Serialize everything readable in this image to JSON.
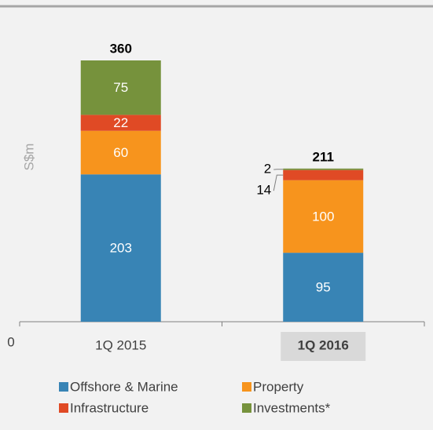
{
  "chart_data": {
    "type": "stacked_bar",
    "y_label": "S$m",
    "categories": [
      "1Q 2015",
      "1Q 2016"
    ],
    "highlight_category": 1,
    "series": [
      {
        "name": "Offshore & Marine",
        "color": "#3884b5",
        "values": [
          203,
          95
        ]
      },
      {
        "name": "Property",
        "color": "#f7941d",
        "values": [
          60,
          100
        ]
      },
      {
        "name": "Infrastructure",
        "color": "#e04a25",
        "values": [
          22,
          14
        ]
      },
      {
        "name": "Investments*",
        "color": "#76923c",
        "values": [
          75,
          2
        ]
      }
    ],
    "totals": [
      360,
      211
    ],
    "ylim": [
      0,
      400
    ],
    "yticks": [
      0
    ]
  }
}
